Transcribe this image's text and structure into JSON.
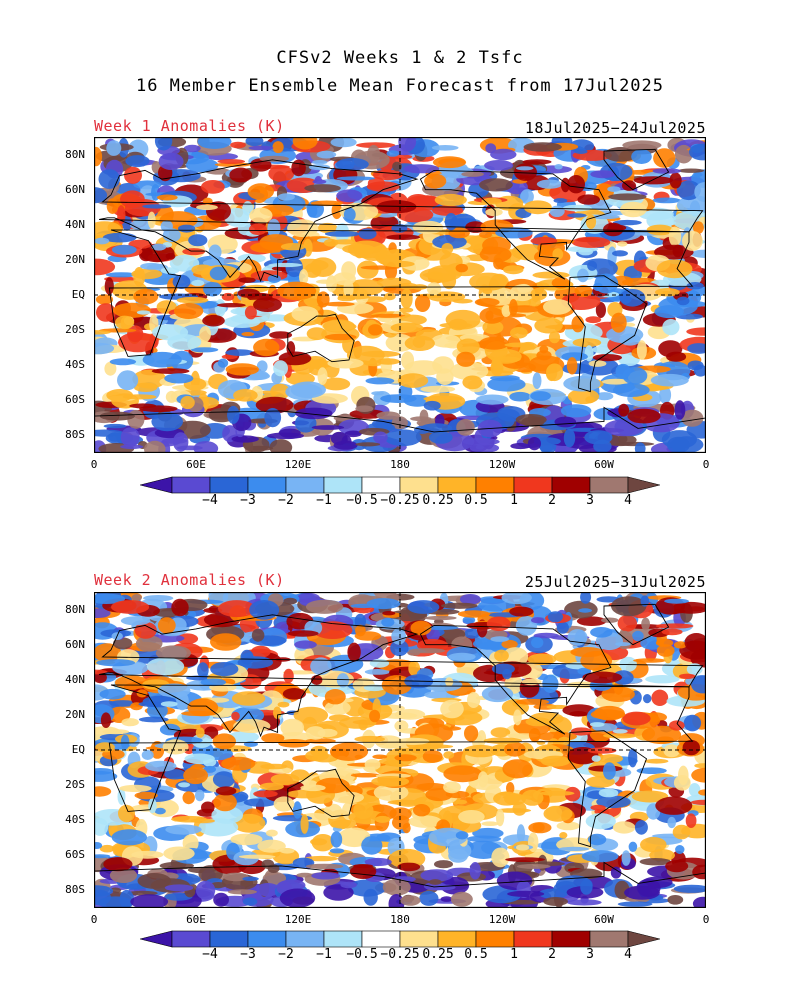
{
  "title": {
    "line1": "CFSv2 Weeks 1 & 2 Tsfc",
    "line2": "16 Member Ensemble Mean Forecast from 17Jul2025"
  },
  "panels": [
    {
      "label": "Week 1 Anomalies (K)",
      "date_range": "18Jul2025−24Jul2025"
    },
    {
      "label": "Week 2 Anomalies (K)",
      "date_range": "25Jul2025−31Jul2025"
    }
  ],
  "lat_ticks": [
    "80N",
    "60N",
    "40N",
    "20N",
    "EQ",
    "20S",
    "40S",
    "60S",
    "80S"
  ],
  "lon_ticks": [
    "0",
    "60E",
    "120E",
    "180",
    "120W",
    "60W",
    "0"
  ],
  "colorbar": {
    "labels": [
      "−4",
      "−3",
      "−2",
      "−1",
      "−0.5",
      "−0.25",
      "0.25",
      "0.5",
      "1",
      "2",
      "3",
      "4"
    ],
    "colors": [
      "#3c14a8",
      "#5a4ad2",
      "#2a66d6",
      "#3c8cee",
      "#78b4f4",
      "#aee4f8",
      "#ffffff",
      "#fee08e",
      "#ffb428",
      "#ff8000",
      "#f0371e",
      "#a00000",
      "#a07870",
      "#6e4640"
    ]
  }
}
